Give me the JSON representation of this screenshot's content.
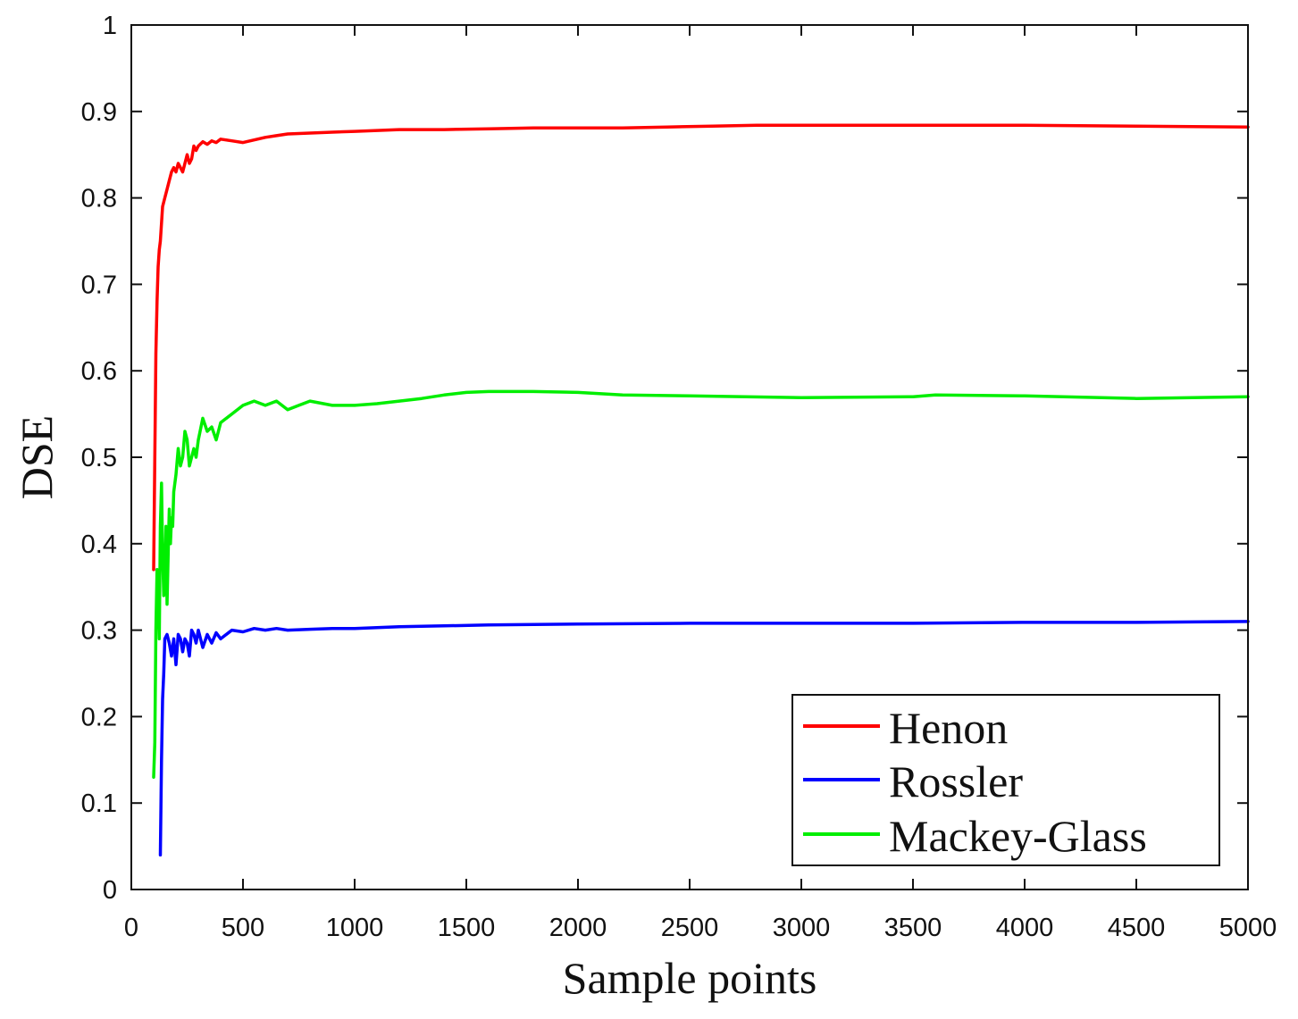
{
  "chart_data": {
    "type": "line",
    "title": "",
    "xlabel": "Sample points",
    "ylabel": "DSE",
    "xlim": [
      0,
      5000
    ],
    "ylim": [
      0,
      1
    ],
    "xticks": [
      0,
      500,
      1000,
      1500,
      2000,
      2500,
      3000,
      3500,
      4000,
      4500,
      5000
    ],
    "yticks": [
      0,
      0.1,
      0.2,
      0.3,
      0.4,
      0.5,
      0.6,
      0.7,
      0.8,
      0.9,
      1
    ],
    "xtick_labels": [
      "0",
      "500",
      "1000",
      "1500",
      "2000",
      "2500",
      "3000",
      "3500",
      "4000",
      "4500",
      "5000"
    ],
    "ytick_labels": [
      "0",
      "0.1",
      "0.2",
      "0.3",
      "0.4",
      "0.5",
      "0.6",
      "0.7",
      "0.8",
      "0.9",
      "1"
    ],
    "grid": false,
    "legend_position": "bottom-right",
    "series": [
      {
        "name": "Henon",
        "color": "#ff0000",
        "x": [
          100,
          105,
          110,
          115,
          120,
          125,
          130,
          140,
          150,
          160,
          170,
          180,
          190,
          200,
          210,
          220,
          230,
          240,
          250,
          260,
          270,
          280,
          290,
          300,
          320,
          340,
          360,
          380,
          400,
          450,
          500,
          550,
          600,
          650,
          700,
          800,
          900,
          1000,
          1200,
          1400,
          1600,
          1800,
          2000,
          2200,
          2400,
          2600,
          2800,
          3000,
          3200,
          3500,
          4000,
          4500,
          5000
        ],
        "y": [
          0.37,
          0.5,
          0.62,
          0.68,
          0.72,
          0.74,
          0.75,
          0.79,
          0.8,
          0.81,
          0.82,
          0.83,
          0.835,
          0.83,
          0.84,
          0.835,
          0.83,
          0.84,
          0.85,
          0.84,
          0.845,
          0.86,
          0.855,
          0.86,
          0.865,
          0.862,
          0.866,
          0.864,
          0.868,
          0.866,
          0.864,
          0.867,
          0.87,
          0.872,
          0.874,
          0.875,
          0.876,
          0.877,
          0.879,
          0.879,
          0.88,
          0.881,
          0.881,
          0.881,
          0.882,
          0.883,
          0.884,
          0.884,
          0.884,
          0.884,
          0.884,
          0.883,
          0.882
        ]
      },
      {
        "name": "Rossler",
        "color": "#0000ff",
        "x": [
          130,
          135,
          140,
          145,
          150,
          160,
          170,
          180,
          190,
          200,
          210,
          220,
          230,
          240,
          250,
          260,
          270,
          280,
          290,
          300,
          320,
          340,
          360,
          380,
          400,
          450,
          500,
          550,
          600,
          650,
          700,
          800,
          900,
          1000,
          1200,
          1400,
          1600,
          2000,
          2500,
          3000,
          3500,
          4000,
          4500,
          5000
        ],
        "y": [
          0.04,
          0.15,
          0.22,
          0.25,
          0.29,
          0.295,
          0.285,
          0.27,
          0.29,
          0.26,
          0.295,
          0.29,
          0.275,
          0.29,
          0.285,
          0.27,
          0.3,
          0.295,
          0.285,
          0.3,
          0.28,
          0.295,
          0.285,
          0.297,
          0.29,
          0.3,
          0.298,
          0.302,
          0.3,
          0.302,
          0.3,
          0.301,
          0.302,
          0.302,
          0.304,
          0.305,
          0.306,
          0.307,
          0.308,
          0.308,
          0.308,
          0.309,
          0.309,
          0.31
        ]
      },
      {
        "name": "Mackey-Glass",
        "color": "#00ee00",
        "x": [
          100,
          105,
          110,
          115,
          120,
          125,
          130,
          135,
          140,
          145,
          150,
          155,
          160,
          165,
          170,
          175,
          180,
          185,
          190,
          200,
          210,
          220,
          230,
          240,
          250,
          260,
          270,
          280,
          290,
          300,
          320,
          340,
          360,
          380,
          400,
          450,
          500,
          550,
          600,
          650,
          700,
          750,
          800,
          900,
          1000,
          1100,
          1200,
          1300,
          1400,
          1500,
          1600,
          1800,
          2000,
          2200,
          2500,
          3000,
          3500,
          3600,
          4000,
          4500,
          5000
        ],
        "y": [
          0.13,
          0.17,
          0.3,
          0.37,
          0.35,
          0.29,
          0.42,
          0.47,
          0.39,
          0.34,
          0.36,
          0.42,
          0.33,
          0.39,
          0.44,
          0.4,
          0.43,
          0.42,
          0.46,
          0.48,
          0.51,
          0.49,
          0.5,
          0.53,
          0.52,
          0.49,
          0.5,
          0.51,
          0.5,
          0.52,
          0.545,
          0.53,
          0.535,
          0.52,
          0.54,
          0.55,
          0.56,
          0.565,
          0.56,
          0.565,
          0.555,
          0.56,
          0.565,
          0.56,
          0.56,
          0.562,
          0.565,
          0.568,
          0.572,
          0.575,
          0.576,
          0.576,
          0.575,
          0.572,
          0.571,
          0.569,
          0.57,
          0.572,
          0.571,
          0.568,
          0.57
        ]
      }
    ]
  }
}
